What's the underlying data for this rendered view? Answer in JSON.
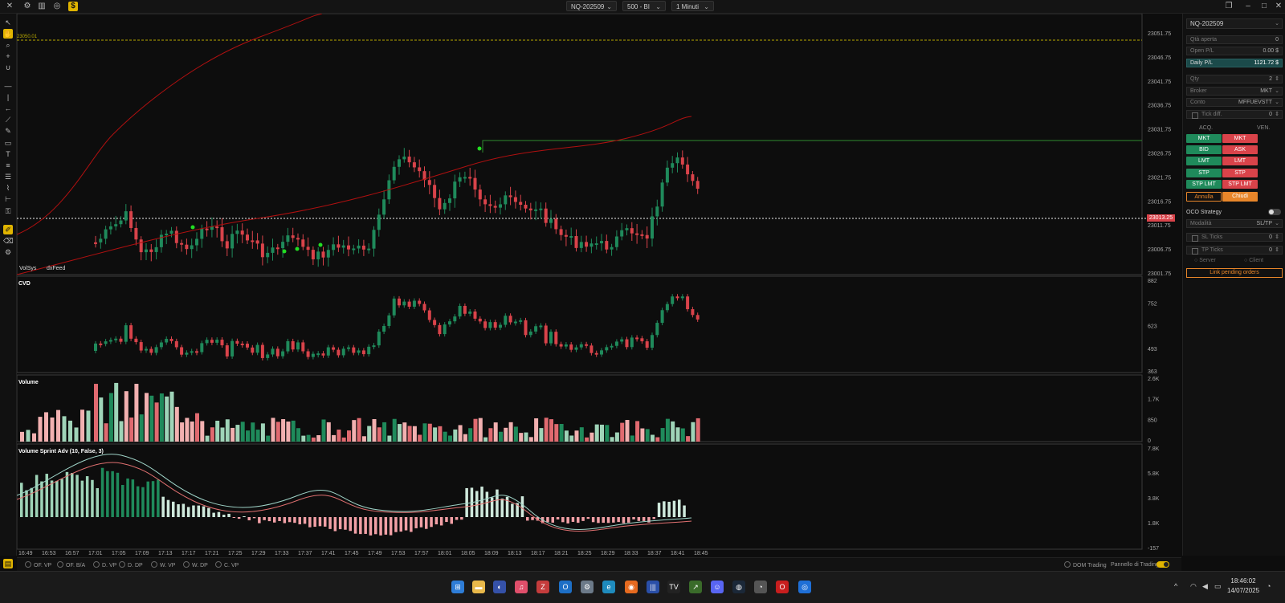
{
  "topbar": {
    "symbol": "NQ-202509",
    "bars_type": "500 - BI",
    "timeframe": "1 Minuti",
    "icons": [
      "close-icon",
      "sliders-icon",
      "bar-chart-icon",
      "target-icon",
      "dollar-icon"
    ],
    "right_icons": [
      "window-restore-icon",
      "minimize-icon",
      "maximize-icon",
      "close-icon"
    ]
  },
  "left_toolbar": {
    "icons": [
      "pointer-icon",
      "hand-icon",
      "zoom-icon",
      "crosshair-icon",
      "magnet-icon",
      "horizontal-line-icon",
      "vertical-line-icon",
      "ray-icon",
      "trend-line-icon",
      "pencil-icon",
      "rectangle-icon",
      "text-icon",
      "fibonacci-icon",
      "list-icon",
      "brush-icon",
      "measure-icon",
      "lock-icon",
      "highlight-icon",
      "eraser-icon",
      "settings-icon"
    ]
  },
  "chart": {
    "price_axis": [
      "23051.75",
      "23046.75",
      "23041.75",
      "23036.75",
      "23031.75",
      "23026.75",
      "23021.75",
      "23016.75",
      "23011.75",
      "23006.75",
      "23001.75"
    ],
    "dashed_level_label": "23050.01",
    "current_price": "23013.25",
    "watermark": [
      "VolSys",
      "dxFeed"
    ],
    "panels": {
      "cvd": {
        "title": "CVD",
        "axis": [
          "882",
          "752",
          "623",
          "493",
          "363"
        ]
      },
      "volume": {
        "title": "Volume",
        "axis": [
          "2.6K",
          "1.7K",
          "850",
          "0"
        ]
      },
      "sprint": {
        "title": "Volume Sprint Adv (10, False, 3)",
        "axis": [
          "7.8K",
          "5.8K",
          "3.8K",
          "1.8K",
          "-157"
        ]
      }
    },
    "time_axis": [
      "16:49",
      "16:53",
      "16:57",
      "17:01",
      "17:05",
      "17:09",
      "17:13",
      "17:17",
      "17:21",
      "17:25",
      "17:29",
      "17:33",
      "17:37",
      "17:41",
      "17:45",
      "17:49",
      "17:53",
      "17:57",
      "18:01",
      "18:05",
      "18:09",
      "18:13",
      "18:17",
      "18:21",
      "18:25",
      "18:29",
      "18:33",
      "18:37",
      "18:41",
      "18:45"
    ],
    "colors": {
      "up": "#1f8a5b",
      "down": "#d9434a",
      "ma": "#b01010",
      "level": "#2e8b2e",
      "dashed": "#b8a800"
    }
  },
  "status": {
    "indicators": [
      "OF. VP",
      "OF. B/A",
      "D. VP",
      "D. DP",
      "W. VP",
      "W. DP",
      "C. VP"
    ],
    "dom_trading": "DOM Trading",
    "trading_panel": "Pannello di Trading"
  },
  "right_panel": {
    "symbol": "NQ-202509",
    "qty_aperta_label": "Qtà aperta",
    "qty_aperta_value": "0",
    "open_pl_label": "Open P/L",
    "open_pl_value": "0.00 $",
    "daily_pl_label": "Daily P/L",
    "daily_pl_value": "1121.72 $",
    "qty_label": "Qty",
    "qty_value": "2",
    "broker_label": "Broker",
    "broker_value": "MKT",
    "conto_label": "Conto",
    "conto_value": "MFFUEVSTT",
    "tick_diff_label": "Tick diff.",
    "tick_diff_value": "0",
    "acq_label": "ACQ.",
    "ven_label": "VEN.",
    "buttons_buy": [
      "MKT",
      "BID",
      "LMT",
      "STP",
      "STP LMT"
    ],
    "buttons_sell": [
      "MKT",
      "ASK",
      "LMT",
      "STP",
      "STP LMT"
    ],
    "annulla": "Annulla",
    "chiudi": "Chiudi",
    "oco_label": "OCO Strategy",
    "modalita_label": "Modalità",
    "modalita_value": "SL/TP",
    "sl_ticks_label": "SL Ticks",
    "sl_ticks_value": "0",
    "tp_ticks_label": "TP Ticks",
    "tp_ticks_value": "0",
    "server_label": "Server",
    "client_label": "Client",
    "link_pending": "Link pending orders"
  },
  "taskbar": {
    "time": "18:46:02",
    "date": "14/07/2025",
    "apps": [
      "windows-start-icon",
      "file-explorer-icon",
      "app-icon",
      "music-icon",
      "zip-icon",
      "outlook-icon",
      "settings-icon",
      "edge-icon",
      "firefox-icon",
      "trading-app-icon",
      "tradingview-icon",
      "chart-app-icon",
      "discord-icon",
      "steam-icon",
      "opera-icon",
      "calendar-icon"
    ]
  }
}
